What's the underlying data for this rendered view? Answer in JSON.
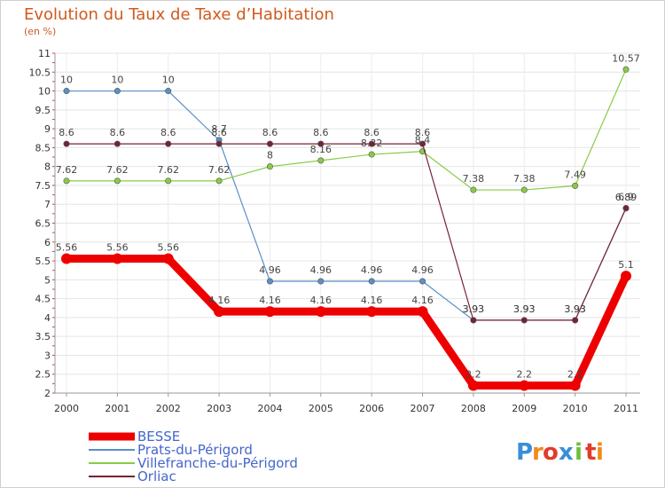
{
  "chart_data": {
    "type": "line",
    "title": "Evolution du Taux de Taxe d’Habitation",
    "subtitle": "(en %)",
    "xlabel": "",
    "ylabel": "",
    "categories": [
      "2000",
      "2001",
      "2002",
      "2003",
      "2004",
      "2005",
      "2006",
      "2007",
      "2008",
      "2009",
      "2010",
      "2011"
    ],
    "y_ticks": [
      "2",
      "2.5",
      "3",
      "3.5",
      "4",
      "4.5",
      "5",
      "5.5",
      "6",
      "6.5",
      "7",
      "7.5",
      "8",
      "8.5",
      "9",
      "9.5",
      "10",
      "10.5",
      "11"
    ],
    "ylim": [
      2,
      11
    ],
    "grid": "horizontal",
    "legend": "bottom-left",
    "series": [
      {
        "name": "BESSE",
        "color": "#ee0000",
        "values": [
          5.56,
          5.56,
          5.56,
          4.16,
          4.16,
          4.16,
          4.16,
          4.16,
          2.2,
          2.2,
          2.2,
          5.1
        ],
        "labels": [
          "5.56",
          "5.56",
          "5.56",
          "4.16",
          "4.16",
          "4.16",
          "4.16",
          "4.16",
          "2.2",
          "2.2",
          "2.2",
          "5.1"
        ]
      },
      {
        "name": "Prats-du-Périgord",
        "color": "#5b8fc7",
        "values": [
          10,
          10,
          10,
          8.7,
          4.96,
          4.96,
          4.96,
          4.96,
          3.93,
          3.93,
          3.93,
          6.89
        ],
        "labels": [
          "10",
          "10",
          "10",
          "8.7",
          "4.96",
          "4.96",
          "4.96",
          "4.96",
          "3.93",
          "3.93",
          "3.93",
          "6.89"
        ]
      },
      {
        "name": "Villefranche-du-Périgord",
        "color": "#88cc44",
        "values": [
          7.62,
          7.62,
          7.62,
          7.62,
          8,
          8.16,
          8.32,
          8.4,
          7.38,
          7.38,
          7.49,
          10.57
        ],
        "labels": [
          "7.62",
          "7.62",
          "7.62",
          "7.62",
          "8",
          "8.16",
          "8.32",
          "8.4",
          "7.38",
          "7.38",
          "7.49",
          "10.57"
        ]
      },
      {
        "name": "Orliac",
        "color": "#772233",
        "values": [
          8.6,
          8.6,
          8.6,
          8.6,
          8.6,
          8.6,
          8.6,
          8.6,
          3.93,
          3.93,
          3.93,
          6.9
        ],
        "labels": [
          "8.6",
          "8.6",
          "8.6",
          "8.6",
          "8.6",
          "8.6",
          "8.6",
          "8.6",
          "3.93",
          "3.93",
          "3.93",
          "6.9"
        ]
      }
    ]
  },
  "logo": {
    "text": "Proxiti",
    "letters": [
      "P",
      "r",
      "o",
      "x",
      "i",
      "t",
      "i"
    ],
    "colors": [
      "#3a8ed8",
      "#f08a1a",
      "#e23b2b",
      "#3a8ed8",
      "#6cbf3a",
      "#e23b2b",
      "#f08a1a"
    ]
  }
}
